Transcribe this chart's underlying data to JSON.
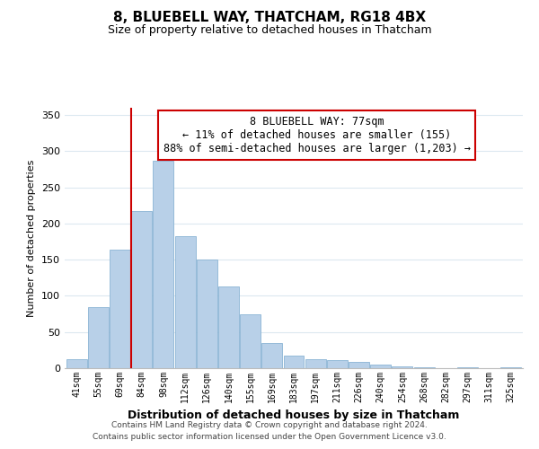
{
  "title": "8, BLUEBELL WAY, THATCHAM, RG18 4BX",
  "subtitle": "Size of property relative to detached houses in Thatcham",
  "xlabel": "Distribution of detached houses by size in Thatcham",
  "ylabel": "Number of detached properties",
  "bar_labels": [
    "41sqm",
    "55sqm",
    "69sqm",
    "84sqm",
    "98sqm",
    "112sqm",
    "126sqm",
    "140sqm",
    "155sqm",
    "169sqm",
    "183sqm",
    "197sqm",
    "211sqm",
    "226sqm",
    "240sqm",
    "254sqm",
    "268sqm",
    "282sqm",
    "297sqm",
    "311sqm",
    "325sqm"
  ],
  "bar_values": [
    12,
    84,
    164,
    217,
    287,
    182,
    150,
    113,
    75,
    35,
    18,
    13,
    11,
    9,
    5,
    2,
    1,
    0,
    1,
    0,
    1
  ],
  "bar_color": "#b8d0e8",
  "bar_edge_color": "#8ab4d4",
  "vline_color": "#cc0000",
  "annotation_title": "8 BLUEBELL WAY: 77sqm",
  "annotation_line1": "← 11% of detached houses are smaller (155)",
  "annotation_line2": "88% of semi-detached houses are larger (1,203) →",
  "annotation_box_color": "#ffffff",
  "annotation_box_edge_color": "#cc0000",
  "ylim": [
    0,
    360
  ],
  "yticks": [
    0,
    50,
    100,
    150,
    200,
    250,
    300,
    350
  ],
  "footer1": "Contains HM Land Registry data © Crown copyright and database right 2024.",
  "footer2": "Contains public sector information licensed under the Open Government Licence v3.0.",
  "background_color": "#ffffff",
  "grid_color": "#dce8f0"
}
